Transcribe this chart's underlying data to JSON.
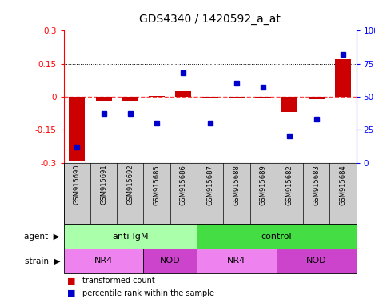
{
  "title": "GDS4340 / 1420592_a_at",
  "samples": [
    "GSM915690",
    "GSM915691",
    "GSM915692",
    "GSM915685",
    "GSM915686",
    "GSM915687",
    "GSM915688",
    "GSM915689",
    "GSM915682",
    "GSM915683",
    "GSM915684"
  ],
  "red_values": [
    -0.29,
    -0.02,
    -0.02,
    0.005,
    0.025,
    -0.005,
    -0.005,
    -0.005,
    -0.07,
    -0.01,
    0.17
  ],
  "blue_values": [
    12,
    37,
    37,
    30,
    68,
    30,
    60,
    57,
    20,
    33,
    82
  ],
  "ylim_left": [
    -0.3,
    0.3
  ],
  "ylim_right": [
    0,
    100
  ],
  "yticks_left": [
    -0.3,
    -0.15,
    0,
    0.15,
    0.3
  ],
  "yticks_right": [
    0,
    25,
    50,
    75,
    100
  ],
  "ytick_labels_left": [
    "-0.3",
    "-0.15",
    "0",
    "0.15",
    "0.3"
  ],
  "ytick_labels_right": [
    "0",
    "25",
    "50",
    "75",
    "100%"
  ],
  "agent_groups": [
    {
      "label": "anti-IgM",
      "start": 0,
      "end": 5,
      "color": "#aaffaa"
    },
    {
      "label": "control",
      "start": 5,
      "end": 11,
      "color": "#44dd44"
    }
  ],
  "strain_groups": [
    {
      "label": "NR4",
      "start": 0,
      "end": 3,
      "color": "#ee82ee"
    },
    {
      "label": "NOD",
      "start": 3,
      "end": 5,
      "color": "#cc44cc"
    },
    {
      "label": "NR4",
      "start": 5,
      "end": 8,
      "color": "#ee82ee"
    },
    {
      "label": "NOD",
      "start": 8,
      "end": 11,
      "color": "#cc44cc"
    }
  ],
  "bar_color": "#cc0000",
  "dot_color": "#0000cc",
  "red_dashed_color": "#ff4444",
  "background_color": "#ffffff",
  "tick_area_color": "#cccccc"
}
